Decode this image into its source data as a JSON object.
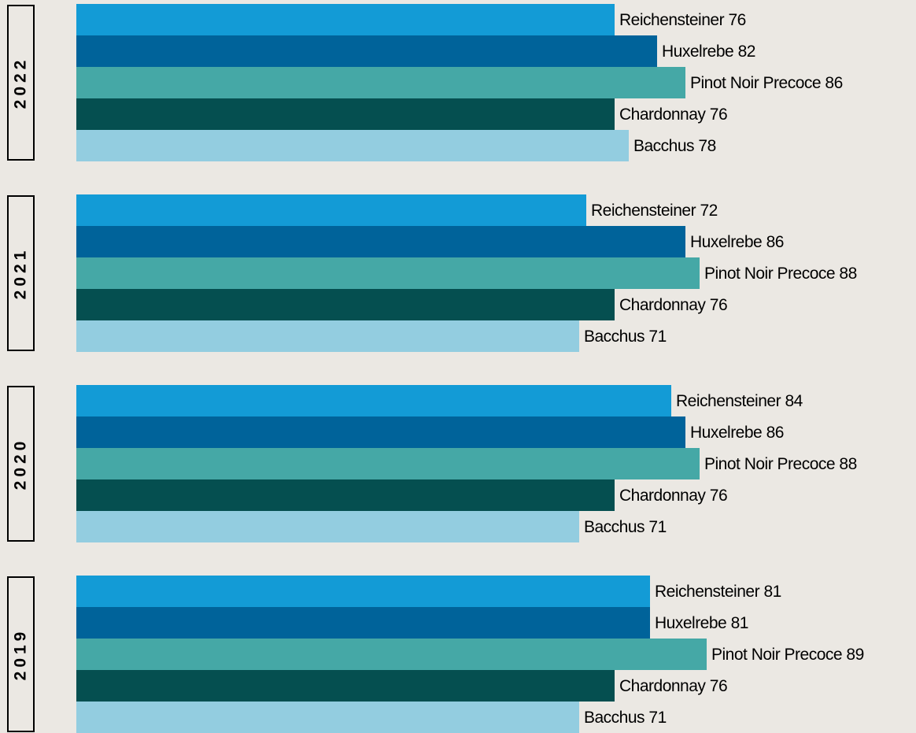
{
  "chart_data": {
    "type": "bar",
    "categories": [
      "2022",
      "2021",
      "2020",
      "2019"
    ],
    "xlim": [
      0,
      100
    ],
    "series": [
      {
        "name": "Reichensteiner",
        "color": "#139bd6",
        "values": [
          76,
          72,
          84,
          81
        ]
      },
      {
        "name": "Huxelrebe",
        "color": "#00639a",
        "values": [
          82,
          86,
          86,
          81
        ]
      },
      {
        "name": "Pinot Noir Precoce",
        "color": "#45a8a6",
        "values": [
          86,
          88,
          88,
          89
        ]
      },
      {
        "name": "Chardonnay",
        "color": "#054f50",
        "values": [
          76,
          76,
          76,
          76
        ]
      },
      {
        "name": "Bacchus",
        "color": "#93cde0",
        "values": [
          78,
          71,
          71,
          71
        ]
      }
    ]
  }
}
